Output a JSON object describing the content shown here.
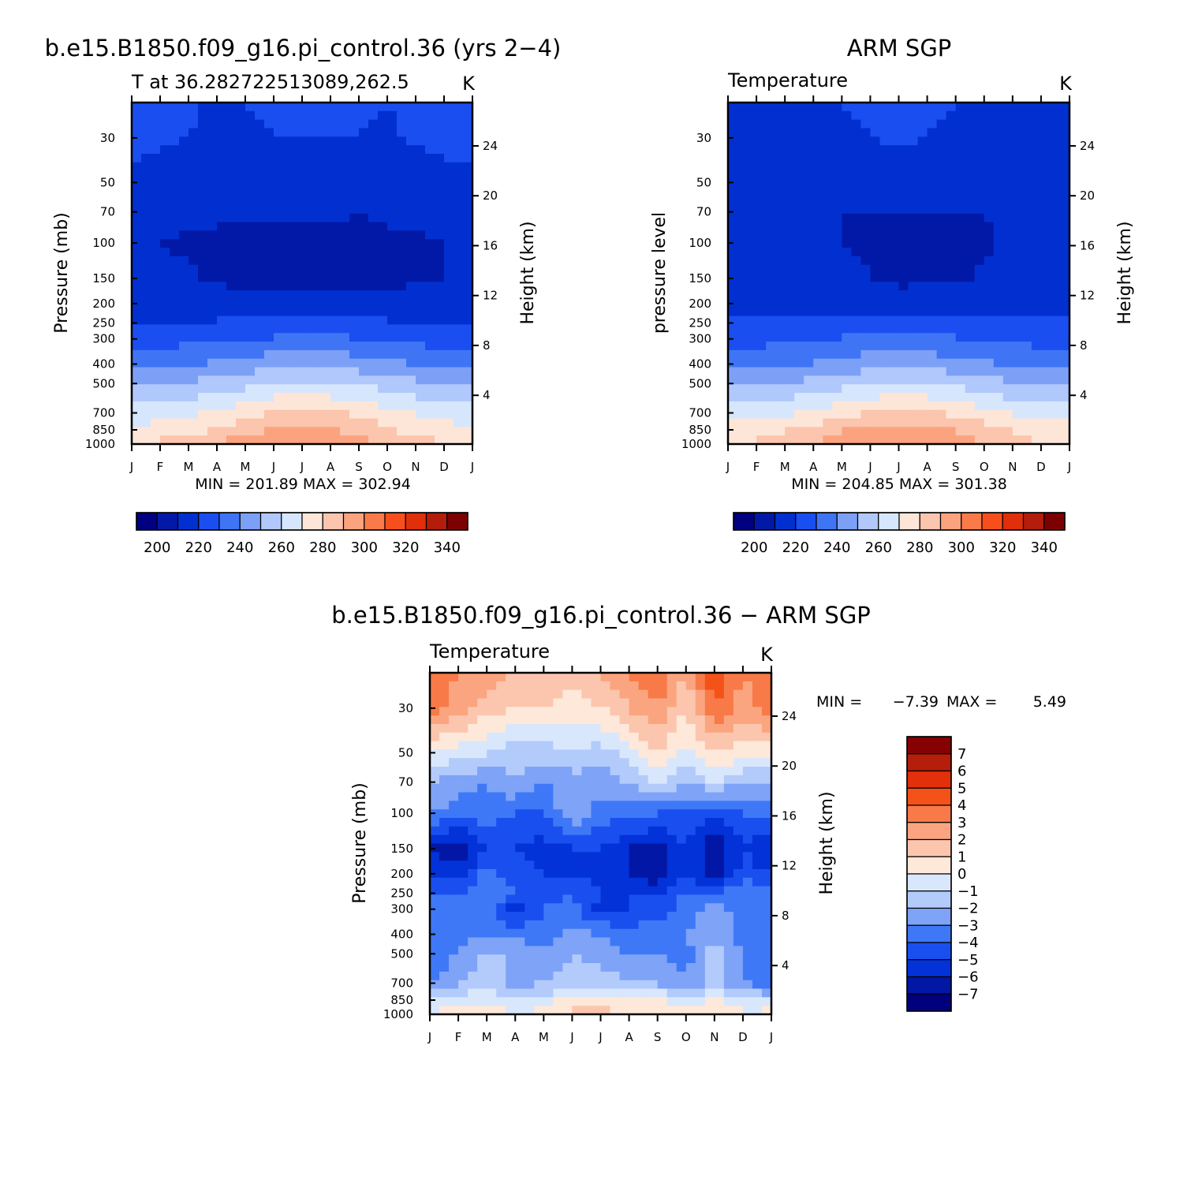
{
  "palette": {
    "temperature": [
      "#000080",
      "#0219a8",
      "#0230d0",
      "#1a4ef0",
      "#3f75f5",
      "#7da0f7",
      "#b0c8fb",
      "#d6e6fc",
      "#fde6d8",
      "#fcc5ad",
      "#fba37f",
      "#fa7a4a",
      "#f64f1d",
      "#e02f0a",
      "#b41c0b",
      "#7d0000"
    ],
    "difference": [
      "#00007e",
      "#0217a5",
      "#0232d8",
      "#1a4fef",
      "#3f78f7",
      "#7ea3f7",
      "#b3cbfb",
      "#d8e7fc",
      "#fde8da",
      "#fbc6ad",
      "#faa57f",
      "#f87a48",
      "#f45219",
      "#e1300a",
      "#b41e0b",
      "#860202"
    ]
  },
  "panels": {
    "model": {
      "title": "b.e15.B1850.f09_g16.pi_control.36 (yrs 2−4)",
      "subtitle": "T at 36.282722513089,262.5",
      "units": "K",
      "ylabel": "Pressure (mb)",
      "ylabel_right": "Height (km)",
      "stats": "MIN = 201.89 MAX = 302.94"
    },
    "obs": {
      "title": "ARM SGP",
      "subtitle": "Temperature",
      "units": "K",
      "ylabel": "pressure level",
      "ylabel_right": "Height (km)",
      "stats": "MIN = 204.85 MAX = 301.38"
    },
    "diff": {
      "title": "b.e15.B1850.f09_g16.pi_control.36 − ARM SGP",
      "subtitle": "Temperature",
      "units": "K",
      "ylabel": "Pressure (mb)",
      "ylabel_right": "Height (km)",
      "stats_min_label": "MIN =",
      "stats_min": "−7.39",
      "stats_max_label": "MAX =",
      "stats_max": "5.49"
    }
  },
  "colorbars": {
    "temperature_labels": [
      "200",
      "220",
      "240",
      "260",
      "280",
      "300",
      "320",
      "340"
    ],
    "difference_labels": [
      "7",
      "6",
      "5",
      "4",
      "3",
      "2",
      "1",
      "0",
      "−1",
      "−2",
      "−3",
      "−4",
      "−5",
      "−6",
      "−7"
    ]
  },
  "chart_data": [
    {
      "type": "heatmap",
      "name": "model",
      "x_ticklabels": [
        "J",
        "F",
        "M",
        "A",
        "M",
        "J",
        "J",
        "A",
        "S",
        "O",
        "N",
        "D",
        "J"
      ],
      "y_ticklabels": [
        "30",
        "50",
        "70",
        "100",
        "150",
        "200",
        "250",
        "300",
        "400",
        "500",
        "700",
        "850",
        "1000"
      ],
      "y_right_ticklabels": [
        "24",
        "20",
        "16",
        "12",
        "8",
        "4"
      ],
      "levels": [
        200,
        210,
        220,
        230,
        240,
        250,
        260,
        270,
        280,
        290,
        300,
        310,
        320,
        330,
        340
      ],
      "pressure_levels": [
        20,
        30,
        50,
        70,
        100,
        150,
        200,
        250,
        300,
        400,
        500,
        700,
        850,
        1000
      ],
      "months": [
        "J",
        "F",
        "M",
        "A",
        "M",
        "J",
        "J",
        "A",
        "S",
        "O",
        "N",
        "D",
        "J"
      ],
      "values": [
        [
          223,
          222,
          221,
          219,
          220,
          221,
          221,
          221,
          221,
          220,
          222,
          223,
          223
        ],
        [
          222,
          221,
          220,
          219,
          219,
          220,
          220,
          220,
          220,
          219,
          221,
          222,
          222
        ],
        [
          219,
          217,
          215,
          214,
          214,
          215,
          216,
          215,
          215,
          215,
          216,
          218,
          219
        ],
        [
          215,
          213,
          212,
          211,
          211,
          211,
          211,
          211,
          210,
          211,
          212,
          214,
          215
        ],
        [
          211,
          210,
          209,
          209,
          208,
          208,
          208,
          208,
          208,
          209,
          209,
          210,
          211
        ],
        [
          212,
          211,
          211,
          209,
          207,
          206,
          206,
          206,
          206,
          207,
          209,
          210,
          212
        ],
        [
          216,
          215,
          215,
          214,
          214,
          214,
          214,
          214,
          214,
          214,
          214,
          215,
          216
        ],
        [
          220,
          220,
          220,
          221,
          222,
          223,
          223,
          223,
          222,
          221,
          220,
          220,
          220
        ],
        [
          226,
          226,
          227,
          228,
          229,
          231,
          232,
          232,
          230,
          228,
          227,
          226,
          226
        ],
        [
          237,
          238,
          239,
          241,
          244,
          247,
          248,
          247,
          245,
          242,
          240,
          238,
          237
        ],
        [
          248,
          249,
          251,
          254,
          257,
          261,
          262,
          261,
          259,
          255,
          252,
          250,
          248
        ],
        [
          265,
          266,
          268,
          272,
          276,
          280,
          282,
          281,
          278,
          273,
          269,
          266,
          265
        ],
        [
          272,
          274,
          277,
          281,
          286,
          290,
          292,
          291,
          287,
          281,
          277,
          274,
          272
        ],
        [
          280,
          282,
          286,
          291,
          296,
          301,
          303,
          301,
          296,
          289,
          284,
          281,
          280
        ]
      ]
    },
    {
      "type": "heatmap",
      "name": "obs",
      "x_ticklabels": [
        "J",
        "F",
        "M",
        "A",
        "M",
        "J",
        "J",
        "A",
        "S",
        "O",
        "N",
        "D",
        "J"
      ],
      "y_ticklabels": [
        "30",
        "50",
        "70",
        "100",
        "150",
        "200",
        "250",
        "300",
        "400",
        "500",
        "700",
        "850",
        "1000"
      ],
      "y_right_ticklabels": [
        "24",
        "20",
        "16",
        "12",
        "8",
        "4"
      ],
      "levels": [
        200,
        210,
        220,
        230,
        240,
        250,
        260,
        270,
        280,
        290,
        300,
        310,
        320,
        330,
        340
      ],
      "pressure_levels": [
        20,
        30,
        50,
        70,
        100,
        150,
        200,
        250,
        300,
        400,
        500,
        700,
        850,
        1000
      ],
      "months": [
        "J",
        "F",
        "M",
        "A",
        "M",
        "J",
        "J",
        "A",
        "S",
        "O",
        "N",
        "D",
        "J"
      ],
      "values": [
        [
          219,
          219,
          219,
          219,
          220,
          221,
          221,
          221,
          220,
          219,
          219,
          219,
          219
        ],
        [
          218,
          218,
          218,
          218,
          219,
          220,
          221,
          220,
          219,
          218,
          218,
          218,
          218
        ],
        [
          215,
          215,
          215,
          215,
          214,
          214,
          214,
          214,
          214,
          214,
          215,
          215,
          215
        ],
        [
          212,
          212,
          212,
          211,
          210,
          210,
          210,
          210,
          210,
          210,
          211,
          212,
          212
        ],
        [
          212,
          212,
          212,
          211,
          210,
          209,
          208,
          208,
          208,
          209,
          211,
          212,
          212
        ],
        [
          213,
          213,
          213,
          213,
          212,
          210,
          208,
          209,
          209,
          211,
          212,
          213,
          213
        ],
        [
          216,
          216,
          216,
          216,
          215,
          214,
          214,
          214,
          215,
          215,
          216,
          216,
          216
        ],
        [
          221,
          221,
          221,
          222,
          223,
          225,
          225,
          225,
          224,
          222,
          222,
          221,
          221
        ],
        [
          227,
          227,
          228,
          229,
          231,
          232,
          233,
          232,
          231,
          229,
          228,
          227,
          227
        ],
        [
          236,
          237,
          238,
          240,
          243,
          246,
          247,
          246,
          244,
          241,
          239,
          237,
          236
        ],
        [
          247,
          248,
          250,
          253,
          257,
          260,
          262,
          261,
          258,
          254,
          251,
          249,
          247
        ],
        [
          265,
          266,
          268,
          272,
          276,
          280,
          282,
          281,
          278,
          273,
          269,
          266,
          265
        ],
        [
          276,
          277,
          280,
          284,
          289,
          293,
          295,
          294,
          290,
          285,
          280,
          277,
          276
        ],
        [
          279,
          281,
          285,
          290,
          295,
          299,
          301,
          300,
          296,
          289,
          284,
          280,
          279
        ]
      ]
    },
    {
      "type": "heatmap",
      "name": "difference",
      "x_ticklabels": [
        "J",
        "F",
        "M",
        "A",
        "M",
        "J",
        "J",
        "A",
        "S",
        "O",
        "N",
        "D",
        "J"
      ],
      "y_ticklabels": [
        "30",
        "50",
        "70",
        "100",
        "150",
        "200",
        "250",
        "300",
        "400",
        "500",
        "700",
        "850",
        "1000"
      ],
      "y_right_ticklabels": [
        "24",
        "20",
        "16",
        "12",
        "8",
        "4"
      ],
      "levels": [
        -7,
        -6,
        -5,
        -4,
        -3,
        -2,
        -1,
        0,
        1,
        2,
        3,
        4,
        5,
        6,
        7
      ],
      "pressure_levels": [
        20,
        30,
        50,
        70,
        100,
        150,
        200,
        250,
        300,
        400,
        500,
        700,
        850,
        1000
      ],
      "months": [
        "J",
        "F",
        "M",
        "A",
        "M",
        "J",
        "J",
        "A",
        "S",
        "O",
        "N",
        "D",
        "J"
      ],
      "values": [
        [
          4,
          3,
          2.5,
          2,
          2,
          1.5,
          2,
          3,
          4,
          2,
          4.8,
          3,
          4
        ],
        [
          3.5,
          2.5,
          1.5,
          1,
          1,
          0.5,
          1,
          2,
          3,
          1,
          4,
          2.5,
          3.5
        ],
        [
          0,
          -0.5,
          -1,
          -1.5,
          -1.5,
          -1,
          -1.5,
          -0.5,
          1,
          -0.5,
          1,
          0.5,
          0.5
        ],
        [
          -2,
          -2.5,
          -3,
          -2,
          -3,
          -2.5,
          -2.5,
          -2,
          -1,
          -2,
          -1,
          -2,
          -2
        ],
        [
          -3,
          -3.5,
          -3.5,
          -4,
          -4,
          -2,
          -3.5,
          -3.5,
          -4,
          -4,
          -5,
          -4,
          -3.5
        ],
        [
          -6,
          -7,
          -5,
          -5,
          -5.5,
          -5,
          -5,
          -6,
          -6.5,
          -5,
          -7,
          -5,
          -6
        ],
        [
          -5,
          -5.5,
          -3.5,
          -4.5,
          -5,
          -5,
          -5.5,
          -6,
          -7,
          -5,
          -6.5,
          -4.5,
          -5
        ],
        [
          -4,
          -4,
          -3,
          -4,
          -4.5,
          -4,
          -5,
          -5,
          -5,
          -4,
          -4,
          -3,
          -3.5
        ],
        [
          -4,
          -3.5,
          -3.5,
          -5.5,
          -4,
          -3.5,
          -5.5,
          -5,
          -4.5,
          -3.5,
          -2.5,
          -3.5,
          -3.5
        ],
        [
          -4,
          -3.5,
          -3,
          -3.5,
          -3.5,
          -2.5,
          -3,
          -3.5,
          -3.5,
          -3,
          -2,
          -3.5,
          -3.5
        ],
        [
          -4,
          -3,
          -2,
          -2,
          -3,
          -2,
          -2.5,
          -3,
          -3,
          -3.5,
          -1.5,
          -3,
          -3.5
        ],
        [
          -3,
          -2,
          -1,
          -2.5,
          -2,
          -1.5,
          -1.5,
          -2,
          -2,
          -3,
          -1.5,
          -3,
          -3.5
        ],
        [
          -1,
          -0.5,
          -0.5,
          -1,
          -0.5,
          0.5,
          0.5,
          0.2,
          0.3,
          -1,
          0.3,
          -1,
          -1
        ],
        [
          0.2,
          0.6,
          1,
          0.2,
          0.3,
          1.2,
          1.3,
          1,
          1.2,
          0.8,
          1.5,
          0.3,
          0.5
        ]
      ]
    }
  ]
}
